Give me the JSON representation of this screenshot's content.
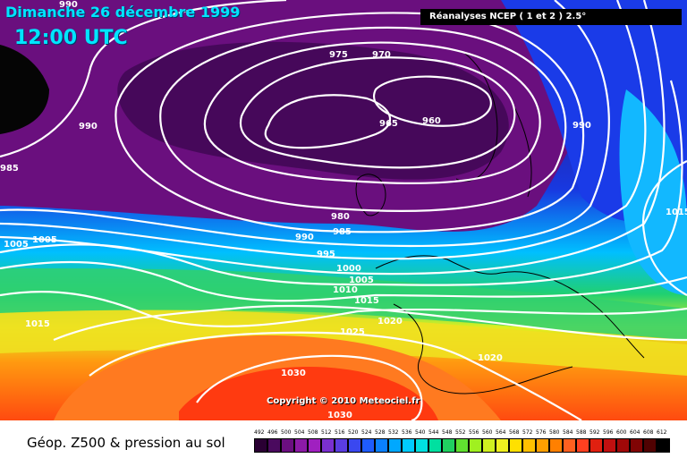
{
  "header": {
    "date": "Dimanche 26 décembre 1999",
    "time": "12:00 UTC",
    "source": "Réanalyses NCEP ( 1 et 2 ) 2.5°"
  },
  "copyright": "Copyright © 2010 Meteociel.fr",
  "footer": {
    "title": "Géop. Z500 & pression au sol"
  },
  "isobar_labels": [
    "990",
    "975",
    "970",
    "965",
    "960",
    "990",
    "990",
    "985",
    "980",
    "990",
    "985",
    "995",
    "1000",
    "1005",
    "1010",
    "1015",
    "1005",
    "1005",
    "1015",
    "1015",
    "1020",
    "1025",
    "1020",
    "1030",
    "1030"
  ],
  "scale": {
    "values": [
      "492",
      "496",
      "500",
      "504",
      "508",
      "512",
      "516",
      "520",
      "524",
      "528",
      "532",
      "536",
      "540",
      "544",
      "548",
      "552",
      "556",
      "560",
      "564",
      "568",
      "572",
      "576",
      "580",
      "584",
      "588",
      "592",
      "596",
      "600",
      "604",
      "608",
      "612"
    ],
    "colors": [
      "#2a0033",
      "#4a0a5e",
      "#6b0f80",
      "#8c1aa6",
      "#a020c0",
      "#7a30d0",
      "#5a3de0",
      "#3a48f0",
      "#1f5cff",
      "#0a80ff",
      "#00a8ff",
      "#00ccff",
      "#00e0e0",
      "#00e0a0",
      "#20d060",
      "#60e030",
      "#a0f020",
      "#d0f020",
      "#f0f020",
      "#ffe000",
      "#ffc000",
      "#ffa000",
      "#ff8000",
      "#ff6020",
      "#ff4020",
      "#e02010",
      "#c01010",
      "#a00808",
      "#800404",
      "#500202",
      "#000000"
    ]
  }
}
